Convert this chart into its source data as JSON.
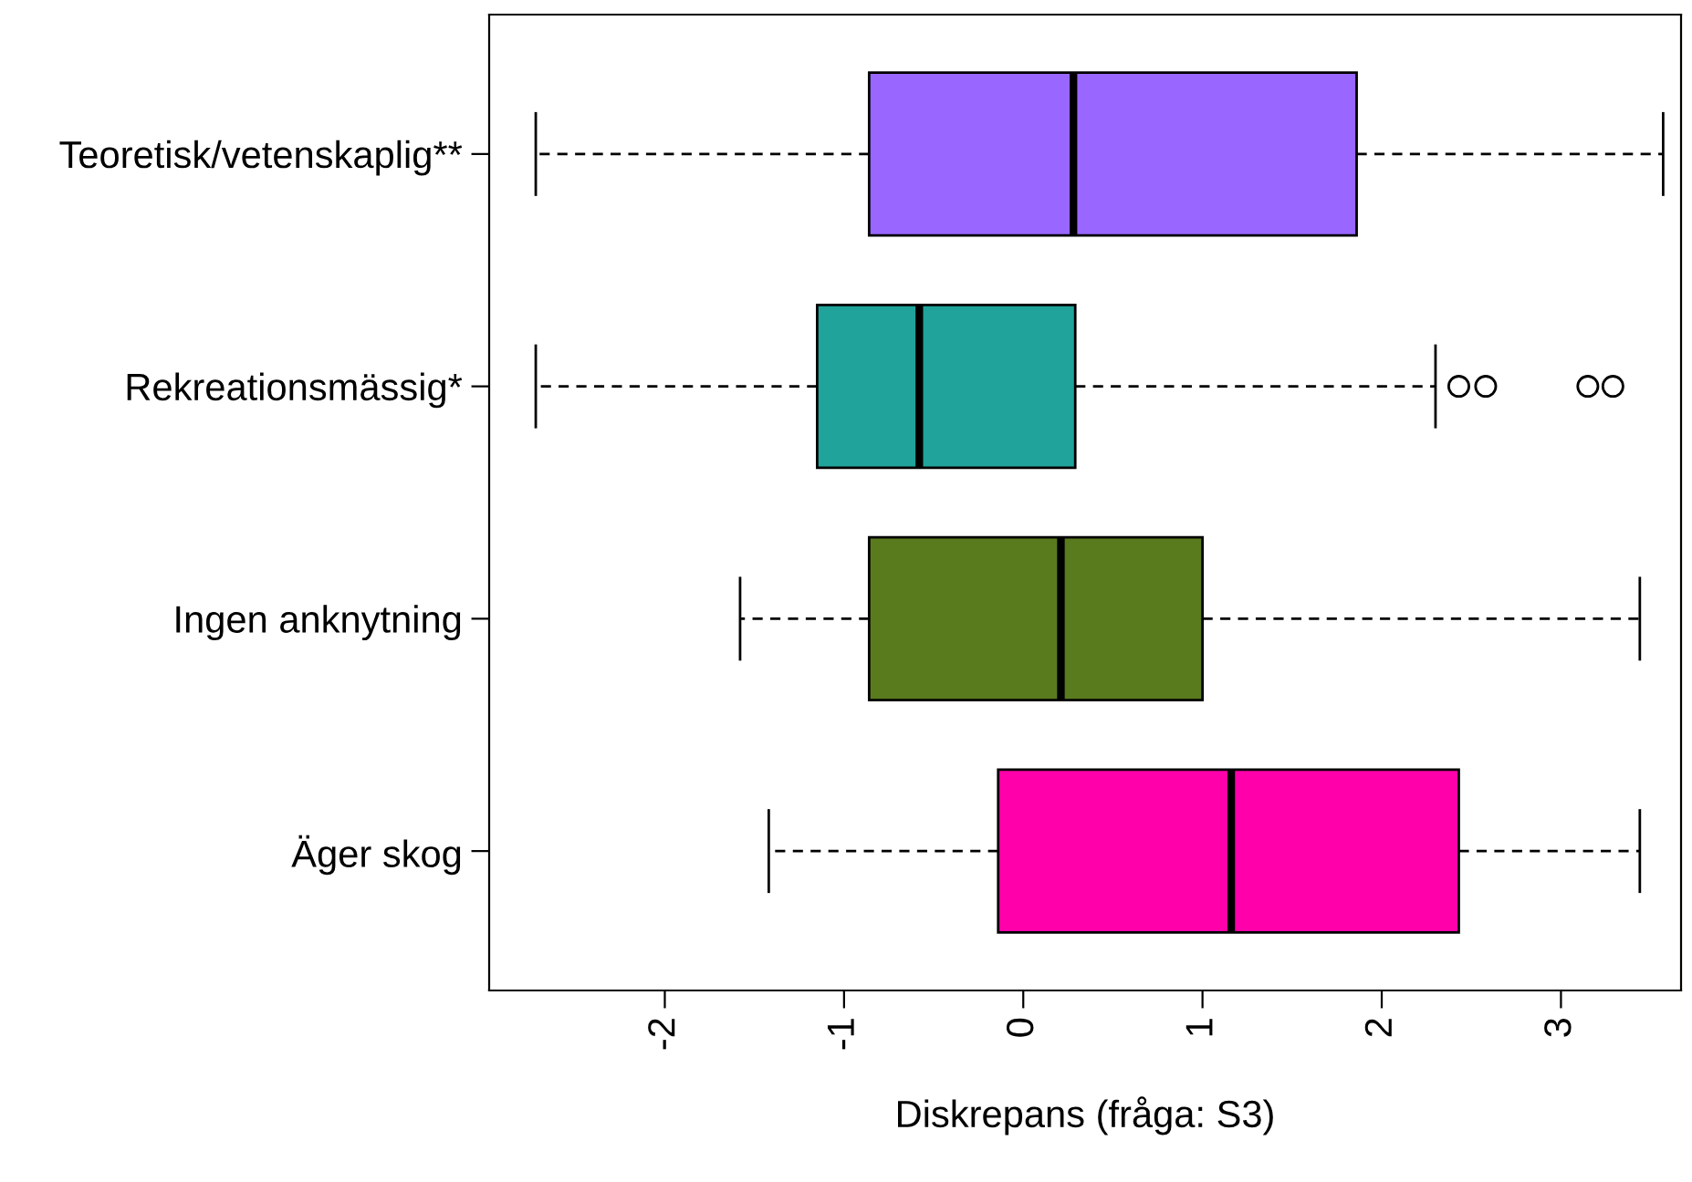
{
  "chart_data": {
    "type": "box",
    "orientation": "horizontal",
    "xlabel": "Diskrepans (fråga: S3)",
    "categories": [
      "Teoretisk/vetenskaplig**",
      "Rekreationsmässig*",
      "Ingen anknytning",
      "Äger skog"
    ],
    "colors": [
      "#9966ff",
      "#20a39a",
      "#5a7a1e",
      "#ff00aa"
    ],
    "boxes": [
      {
        "low": -2.72,
        "q1": -0.86,
        "median": 0.28,
        "q3": 1.86,
        "high": 3.57
      },
      {
        "low": -2.72,
        "q1": -1.15,
        "median": -0.58,
        "q3": 0.29,
        "high": 2.3,
        "outliers": [
          2.43,
          2.58,
          3.15,
          3.29
        ]
      },
      {
        "low": -1.58,
        "q1": -0.86,
        "median": 0.21,
        "q3": 1.0,
        "high": 3.44
      },
      {
        "low": -1.42,
        "q1": -0.14,
        "median": 1.16,
        "q3": 2.43,
        "high": 3.44
      }
    ],
    "xlim": [
      -2.98,
      3.67
    ],
    "xticks": [
      -2,
      -1,
      0,
      1,
      2,
      3
    ],
    "grid": false
  }
}
